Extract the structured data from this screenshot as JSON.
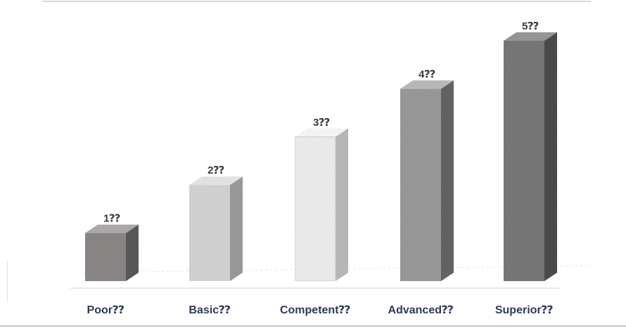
{
  "chart_data": {
    "type": "bar",
    "categories": [
      "Poor⁇",
      "Basic⁇",
      "Competent⁇",
      "Advanced⁇",
      "Superior⁇"
    ],
    "values": [
      1,
      2,
      3,
      4,
      5
    ],
    "value_labels": [
      "1⁇",
      "2⁇",
      "3⁇",
      "4⁇",
      "5⁇"
    ],
    "title": "",
    "xlabel": "",
    "ylabel": "",
    "ylim": [
      0,
      5
    ],
    "grid": false,
    "legend": "none",
    "style": "3d-column",
    "colors": {
      "front": [
        "#8e8a8a",
        "#d8d8d8",
        "#f3f3f3",
        "#9d9d9d",
        "#7a7a7a"
      ],
      "side": [
        "#5d5a5a",
        "#9e9e9e",
        "#bdbdbd",
        "#666666",
        "#4d4d4d"
      ],
      "top": [
        "#b2aeae",
        "#ebebeb",
        "#fdfdfd",
        "#bfbfbf",
        "#9a9a9a"
      ]
    }
  }
}
